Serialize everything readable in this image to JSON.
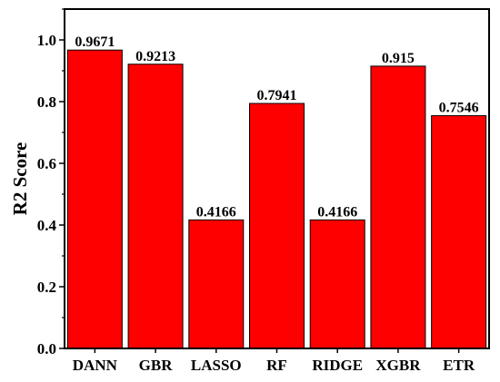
{
  "chart_data": {
    "type": "bar",
    "title": "",
    "xlabel": "",
    "ylabel": "R2 Score",
    "categories": [
      "DANN",
      "GBR",
      "LASSO",
      "RF",
      "RIDGE",
      "XGBR",
      "ETR"
    ],
    "values": [
      0.9671,
      0.9213,
      0.4166,
      0.7941,
      0.4166,
      0.915,
      0.7546
    ],
    "data_labels": [
      "0.9671",
      "0.9213",
      "0.4166",
      "0.7941",
      "0.4166",
      "0.915",
      "0.7546"
    ],
    "ylim": [
      0.0,
      1.1
    ],
    "yticks": [
      0.0,
      0.2,
      0.4,
      0.6,
      0.8,
      1.0
    ],
    "ytick_labels": [
      "0.0",
      "0.2",
      "0.4",
      "0.6",
      "0.8",
      "1.0"
    ],
    "grid": false,
    "legend": "none",
    "bar_color": "#ff0000",
    "bar_edge_color": "#000000"
  }
}
